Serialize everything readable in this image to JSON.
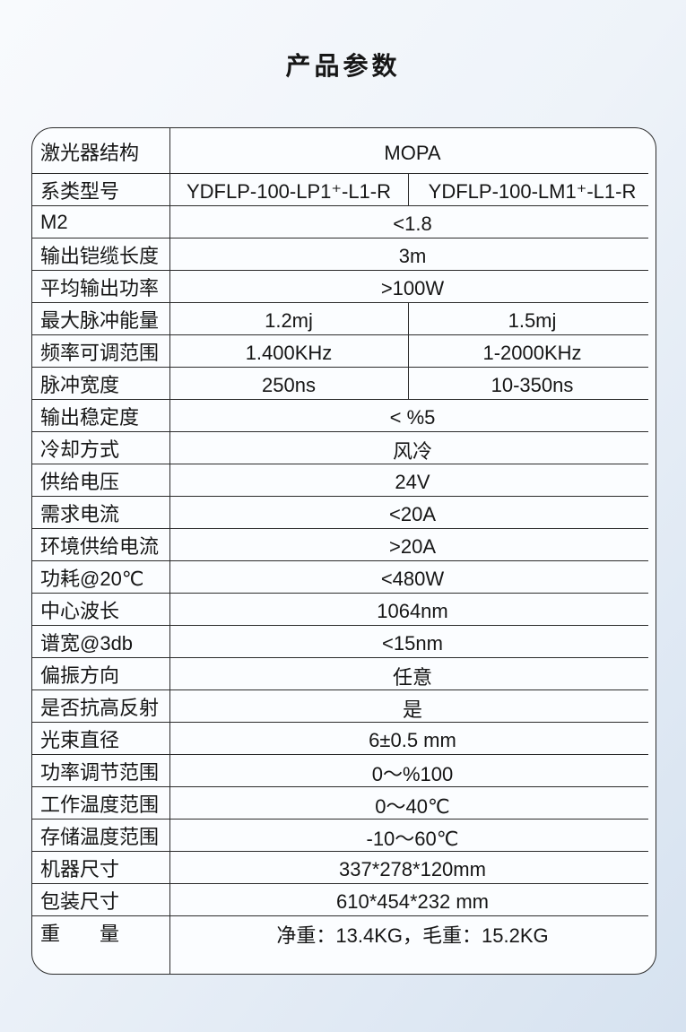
{
  "page": {
    "title": "产品参数"
  },
  "colors": {
    "page_background_top": "#f8fafd",
    "page_background_bottom": "#d6e2f0",
    "table_background": "#fbfdff",
    "line_color": "#2b2b2b",
    "text_color": "#161616"
  },
  "table": {
    "rows": [
      {
        "label": "激光器结构",
        "value": "MOPA"
      },
      {
        "label": "系类型号",
        "values": [
          "YDFLP-100-LP1⁺-L1-R",
          "YDFLP-100-LM1⁺-L1-R"
        ]
      },
      {
        "label": "M2",
        "value": "<1.8"
      },
      {
        "label": "输出铠缆长度",
        "value": "3m"
      },
      {
        "label": "平均输出功率",
        "value": ">100W"
      },
      {
        "label": "最大脉冲能量",
        "values": [
          "1.2mj",
          "1.5mj"
        ]
      },
      {
        "label": "频率可调范围",
        "values": [
          "1.400KHz",
          "1-2000KHz"
        ]
      },
      {
        "label": "脉冲宽度",
        "values": [
          "250ns",
          "10-350ns"
        ]
      },
      {
        "label": "输出稳定度",
        "value": "< %5"
      },
      {
        "label": "冷却方式",
        "value": "风冷"
      },
      {
        "label": "供给电压",
        "value": "24V"
      },
      {
        "label": "需求电流",
        "value": "<20A"
      },
      {
        "label": "环境供给电流",
        "value": ">20A"
      },
      {
        "label": "功耗@20℃",
        "value": "<480W"
      },
      {
        "label": "中心波长",
        "value": "1064nm"
      },
      {
        "label": "谱宽@3db",
        "value": "<15nm"
      },
      {
        "label": "偏振方向",
        "value": "任意"
      },
      {
        "label": "是否抗高反射",
        "value": "是"
      },
      {
        "label": "光束直径",
        "value": "6±0.5 mm"
      },
      {
        "label": "功率调节范围",
        "value": "0～%100"
      },
      {
        "label": "工作温度范围",
        "value": "0～40℃"
      },
      {
        "label": "存储温度范围",
        "value": "-10～60℃"
      },
      {
        "label": "机器尺寸",
        "value": "337*278*120mm"
      },
      {
        "label": "包装尺寸",
        "value": "610*454*232 mm"
      },
      {
        "label": "重　　量",
        "value": "净重：13.4KG，毛重：15.2KG"
      }
    ]
  }
}
